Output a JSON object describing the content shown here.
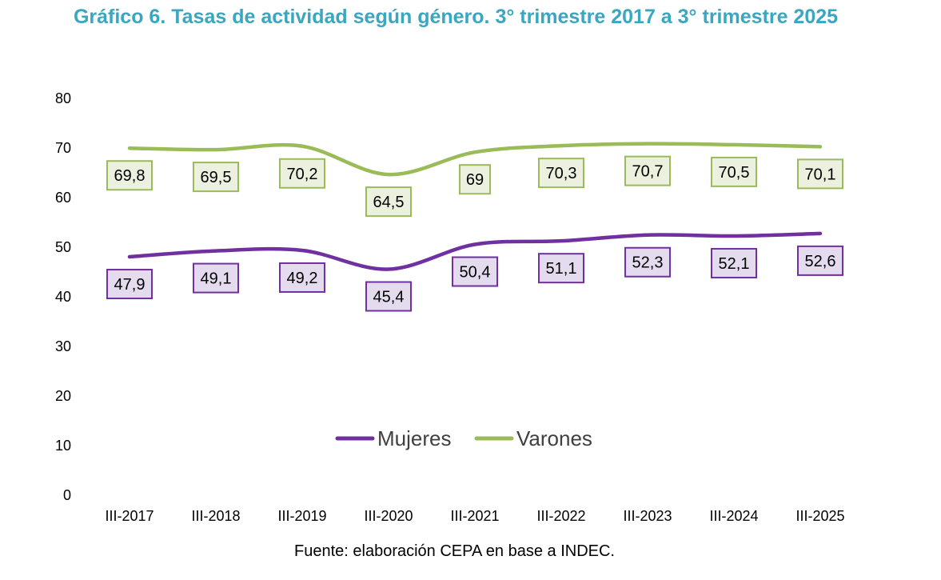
{
  "chart_data": {
    "type": "line",
    "title": "Gráfico 6. Tasas de actividad según género. 3° trimestre 2017 a 3° trimestre 2025",
    "categories": [
      "III-2017",
      "III-2018",
      "III-2019",
      "III-2020",
      "III-2021",
      "III-2022",
      "III-2023",
      "III-2024",
      "III-2025"
    ],
    "series": [
      {
        "name": "Mujeres",
        "color": "#7030a0",
        "label_fill": "#e4dbef",
        "values": [
          47.9,
          49.1,
          49.2,
          45.4,
          50.4,
          51.1,
          52.3,
          52.1,
          52.6
        ],
        "labels": [
          "47,9",
          "49,1",
          "49,2",
          "45,4",
          "50,4",
          "51,1",
          "52,3",
          "52,1",
          "52,6"
        ]
      },
      {
        "name": "Varones",
        "color": "#9bbb59",
        "label_fill": "#ebf1de",
        "values": [
          69.8,
          69.5,
          70.2,
          64.5,
          69,
          70.3,
          70.7,
          70.5,
          70.1
        ],
        "labels": [
          "69,8",
          "69,5",
          "70,2",
          "64,5",
          "69",
          "70,3",
          "70,7",
          "70,5",
          "70,1"
        ]
      }
    ],
    "yticks": [
      "0",
      "10",
      "20",
      "30",
      "40",
      "50",
      "60",
      "70",
      "80"
    ],
    "ylim": [
      0,
      80
    ],
    "grid": false,
    "legend": "bottom-center",
    "xlabel": "",
    "ylabel": ""
  },
  "footer": {
    "source": "Fuente: elaboración CEPA en base a INDEC."
  }
}
